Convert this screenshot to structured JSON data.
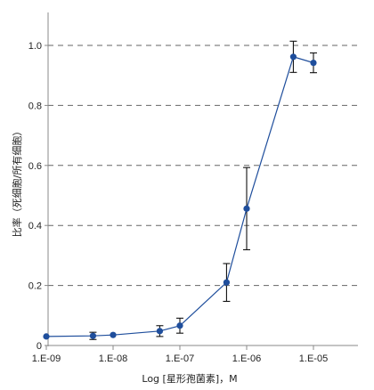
{
  "colors": {
    "series": "#1f4e9c",
    "axis": "#888888",
    "grid": "#666666",
    "errorbar": "#111111",
    "text": "#222222"
  },
  "chart_data": {
    "type": "scatter",
    "xlabel": "Log [星形孢菌素]，M",
    "ylabel": "比率（死细胞/所有细胞）",
    "xscale": "log",
    "xlim": [
      1e-09,
      1e-05
    ],
    "ylim": [
      0,
      1.0
    ],
    "grid": "horizontal dashed",
    "legend": "none",
    "x_tick_labels": [
      "1.E-09",
      "1.E-08",
      "1.E-07",
      "1.E-06",
      "1.E-05"
    ],
    "x_tick_values": [
      1e-09,
      1e-08,
      1e-07,
      1e-06,
      1e-05
    ],
    "y_tick_labels": [
      "0",
      "0.2",
      "0.4",
      "0.6",
      "0.8",
      "1.0"
    ],
    "y_tick_values": [
      0,
      0.2,
      0.4,
      0.6,
      0.8,
      1.0
    ],
    "series": [
      {
        "line": true,
        "points": [
          {
            "x": 1e-09,
            "y": 0.03,
            "err": 0.0
          },
          {
            "x": 5e-09,
            "y": 0.032,
            "err": 0.012
          },
          {
            "x": 1e-08,
            "y": 0.035,
            "err": 0.0
          },
          {
            "x": 5e-08,
            "y": 0.048,
            "err": 0.018
          },
          {
            "x": 1e-07,
            "y": 0.066,
            "err": 0.025
          },
          {
            "x": 5e-07,
            "y": 0.21,
            "err": 0.063
          },
          {
            "x": 1e-06,
            "y": 0.456,
            "err": 0.137
          },
          {
            "x": 5e-06,
            "y": 0.962,
            "err": 0.052
          },
          {
            "x": 1e-05,
            "y": 0.942,
            "err": 0.033
          }
        ]
      }
    ]
  }
}
